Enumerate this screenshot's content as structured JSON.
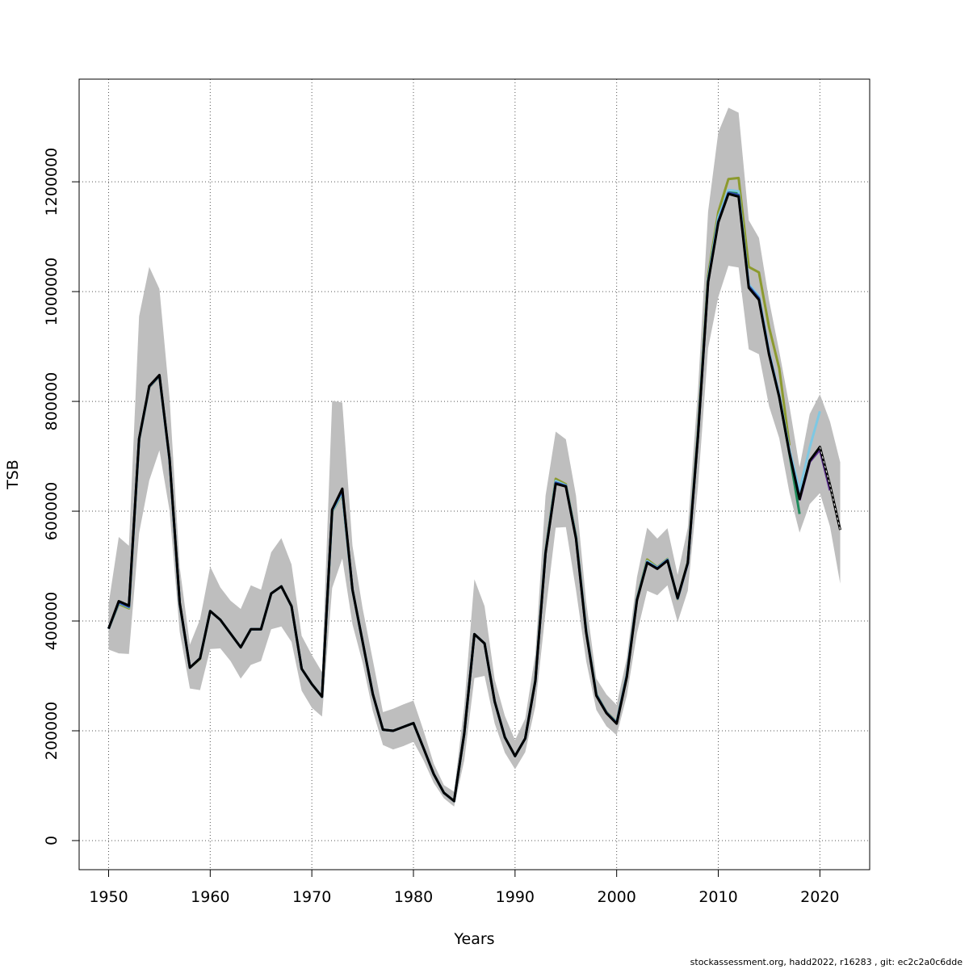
{
  "chart_data": {
    "type": "line",
    "title": "",
    "xlabel": "Years",
    "ylabel": "TSB",
    "xlim": [
      1947.1,
      2024.9
    ],
    "ylim": [
      -53000,
      1387000
    ],
    "xticks": [
      1950,
      1960,
      1970,
      1980,
      1990,
      2000,
      2010,
      2020
    ],
    "xtick_labels": [
      "1950",
      "1960",
      "1970",
      "1980",
      "1990",
      "2000",
      "2010",
      "2020"
    ],
    "yticks": [
      0,
      200000,
      400000,
      600000,
      800000,
      1000000,
      1200000
    ],
    "ytick_labels": [
      "0",
      "200000",
      "400000",
      "600000",
      "800000",
      "1000000",
      "1200000"
    ],
    "grid": true,
    "band_color": "#bebebe",
    "confidence_band": {
      "x": [
        1950,
        1951,
        1952,
        1953,
        1954,
        1955,
        1956,
        1957,
        1958,
        1959,
        1960,
        1961,
        1962,
        1963,
        1964,
        1965,
        1966,
        1967,
        1968,
        1969,
        1970,
        1971,
        1972,
        1973,
        1974,
        1975,
        1976,
        1977,
        1978,
        1979,
        1980,
        1981,
        1982,
        1983,
        1984,
        1985,
        1986,
        1987,
        1988,
        1989,
        1990,
        1991,
        1992,
        1993,
        1994,
        1995,
        1996,
        1997,
        1998,
        1999,
        2000,
        2001,
        2002,
        2003,
        2004,
        2005,
        2006,
        2007,
        2008,
        2009,
        2010,
        2011,
        2012,
        2013,
        2014,
        2015,
        2016,
        2017,
        2018,
        2019,
        2020,
        2021,
        2022
      ],
      "upper": [
        431000,
        553000,
        537000,
        955000,
        1045000,
        1005000,
        806000,
        498000,
        357000,
        403000,
        499000,
        461000,
        437000,
        422000,
        465000,
        457000,
        525000,
        551000,
        503000,
        373000,
        338000,
        307000,
        801000,
        798000,
        537000,
        423000,
        329000,
        234000,
        240000,
        248000,
        255000,
        200000,
        140000,
        101000,
        89000,
        245000,
        476000,
        427000,
        293000,
        227000,
        183000,
        222000,
        340000,
        628000,
        745000,
        731000,
        628000,
        435000,
        295000,
        266000,
        247000,
        333000,
        480000,
        570000,
        550000,
        569000,
        484000,
        570000,
        820000,
        1146000,
        1290000,
        1335000,
        1326000,
        1130000,
        1098000,
        984000,
        891000,
        792000,
        680000,
        777000,
        813000,
        763000,
        689000
      ],
      "lower": [
        348000,
        341000,
        340000,
        560000,
        656000,
        711000,
        601000,
        380000,
        277000,
        274000,
        349000,
        350000,
        327000,
        295000,
        320000,
        327000,
        385000,
        390000,
        362000,
        273000,
        242000,
        226000,
        460000,
        514000,
        394000,
        324000,
        236000,
        174000,
        166000,
        172000,
        180000,
        146000,
        105000,
        77000,
        62000,
        146000,
        296000,
        300000,
        213000,
        160000,
        130000,
        161000,
        245000,
        416000,
        570000,
        571000,
        456000,
        327000,
        238000,
        208000,
        192000,
        264000,
        378000,
        455000,
        447000,
        465000,
        398000,
        455000,
        645000,
        897000,
        990000,
        1047000,
        1044000,
        895000,
        886000,
        791000,
        733000,
        634000,
        561000,
        613000,
        633000,
        572000,
        468000
      ]
    },
    "series": [
      {
        "color": "#000000",
        "x": [
          1950,
          1951,
          1952,
          1953,
          1954,
          1955,
          1956,
          1957,
          1958,
          1959,
          1960,
          1961,
          1962,
          1963,
          1964,
          1965,
          1966,
          1967,
          1968,
          1969,
          1970,
          1971,
          1972,
          1973,
          1974,
          1975,
          1976,
          1977,
          1978,
          1979,
          1980,
          1981,
          1982,
          1983,
          1984,
          1985,
          1986,
          1987,
          1988,
          1989,
          1990,
          1991,
          1992,
          1993,
          1994,
          1995,
          1996,
          1997,
          1998,
          1999,
          2000,
          2001,
          2002,
          2003,
          2004,
          2005,
          2006,
          2007,
          2008,
          2009,
          2010,
          2011,
          2012,
          2013,
          2014,
          2015,
          2016,
          2017,
          2018,
          2019,
          2020,
          2021,
          2022
        ],
        "values": [
          386000,
          436000,
          428000,
          732000,
          828000,
          848000,
          695000,
          433000,
          315000,
          332000,
          418000,
          402000,
          377000,
          352000,
          385000,
          385000,
          450000,
          463000,
          427000,
          313000,
          285000,
          262000,
          603000,
          641000,
          457000,
          362000,
          267000,
          202000,
          200000,
          207000,
          214000,
          168000,
          121000,
          87000,
          72000,
          195000,
          376000,
          359000,
          253000,
          188000,
          154000,
          186000,
          291000,
          523000,
          650000,
          645000,
          550000,
          379000,
          264000,
          232000,
          213000,
          298000,
          438000,
          506000,
          495000,
          510000,
          442000,
          506000,
          736000,
          1017000,
          1126000,
          1178000,
          1173000,
          1007000,
          985000,
          885000,
          808000,
          706000,
          622000,
          692000,
          717000,
          647000,
          566000
        ]
      },
      {
        "color": "#5b2c8f",
        "x": [
          2018,
          2019,
          2020,
          2021
        ],
        "values": [
          620000,
          690000,
          712000,
          638000
        ]
      },
      {
        "color": "#2b4aa8",
        "x": [
          1950,
          1951,
          1952,
          1953,
          1954,
          1955,
          1956,
          1957,
          1958,
          1959,
          1960,
          1961,
          1962,
          1963,
          1964,
          1965,
          1966,
          1967,
          1968,
          1969,
          1970,
          1971,
          1972,
          1973,
          1974,
          1975,
          1976,
          1977,
          1978,
          1979,
          1980,
          1981,
          1982,
          1983,
          1984,
          1985,
          1986,
          1987,
          1988,
          1989,
          1990,
          1991,
          1992,
          1993,
          1994,
          1995,
          1996,
          1997,
          1998,
          1999,
          2000,
          2001,
          2002,
          2003,
          2004,
          2005,
          2006,
          2007,
          2008,
          2009,
          2010,
          2011,
          2012,
          2013,
          2014,
          2015,
          2016,
          2017,
          2018,
          2019
        ],
        "values": [
          386000,
          434000,
          426000,
          731000,
          827000,
          847000,
          694000,
          432000,
          315000,
          332000,
          418000,
          402000,
          377000,
          352000,
          385000,
          385000,
          450000,
          463000,
          427000,
          313000,
          285000,
          262000,
          602000,
          638000,
          457000,
          362000,
          267000,
          202000,
          200000,
          207000,
          214000,
          168000,
          121000,
          87000,
          72000,
          195000,
          376000,
          359000,
          253000,
          188000,
          154000,
          186000,
          291000,
          524000,
          652000,
          646000,
          551000,
          380000,
          265000,
          233000,
          214000,
          300000,
          439000,
          507000,
          496000,
          511000,
          441000,
          505000,
          737000,
          1018000,
          1128000,
          1180000,
          1176000,
          1010000,
          988000,
          887000,
          809000,
          707000,
          624000,
          690000
        ]
      },
      {
        "color": "#7ec8e3",
        "x": [
          1950,
          1951,
          1952,
          1953,
          1954,
          1955,
          1956,
          1957,
          1958,
          1959,
          1960,
          1961,
          1962,
          1963,
          1964,
          1965,
          1966,
          1967,
          1968,
          1969,
          1970,
          1971,
          1972,
          1973,
          1974,
          1975,
          1976,
          1977,
          1978,
          1979,
          1980,
          1981,
          1982,
          1983,
          1984,
          1985,
          1986,
          1987,
          1988,
          1989,
          1990,
          1991,
          1992,
          1993,
          1994,
          1995,
          1996,
          1997,
          1998,
          1999,
          2000,
          2001,
          2002,
          2003,
          2004,
          2005,
          2006,
          2007,
          2008,
          2009,
          2010,
          2011,
          2012,
          2013,
          2014,
          2015,
          2016,
          2017,
          2018,
          2019,
          2020
        ],
        "values": [
          386000,
          433000,
          425000,
          731000,
          827000,
          847000,
          694000,
          432000,
          315000,
          332000,
          418000,
          402000,
          377000,
          352000,
          385000,
          385000,
          450000,
          463000,
          427000,
          313000,
          285000,
          262000,
          600000,
          634000,
          457000,
          362000,
          267000,
          202000,
          200000,
          207000,
          214000,
          168000,
          121000,
          87000,
          72000,
          195000,
          376000,
          359000,
          253000,
          188000,
          154000,
          186000,
          292000,
          525000,
          655000,
          647000,
          553000,
          381000,
          266000,
          233000,
          215000,
          301000,
          440000,
          509000,
          497000,
          512000,
          441000,
          506000,
          740000,
          1022000,
          1135000,
          1185000,
          1183000,
          1013000,
          992000,
          890000,
          812000,
          712000,
          638000,
          716000,
          782000
        ]
      },
      {
        "color": "#1f8a5b",
        "x": [
          1950,
          1951,
          1952,
          1953,
          1954,
          1955,
          1956,
          1957,
          1958,
          1959,
          1960,
          1961,
          1962,
          1963,
          1964,
          1965,
          1966,
          1967,
          1968,
          1969,
          1970,
          1971,
          1972,
          1973,
          1974,
          1975,
          1976,
          1977,
          1978,
          1979,
          1980,
          1981,
          1982,
          1983,
          1984,
          1985,
          1986,
          1987,
          1988,
          1989,
          1990,
          1991,
          1992,
          1993,
          1994,
          1995,
          1996,
          1997,
          1998,
          1999,
          2000,
          2001,
          2002,
          2003,
          2004,
          2005,
          2006,
          2007,
          2008,
          2009,
          2010,
          2011,
          2012,
          2013,
          2014,
          2015,
          2016,
          2017,
          2018
        ],
        "values": [
          386000,
          433000,
          425000,
          731000,
          827000,
          847000,
          694000,
          432000,
          315000,
          332000,
          418000,
          402000,
          377000,
          352000,
          385000,
          385000,
          450000,
          463000,
          427000,
          313000,
          285000,
          262000,
          600000,
          634000,
          457000,
          362000,
          267000,
          202000,
          200000,
          207000,
          214000,
          168000,
          121000,
          87000,
          72000,
          195000,
          376000,
          359000,
          253000,
          188000,
          154000,
          186000,
          292000,
          525000,
          655000,
          647000,
          553000,
          381000,
          266000,
          233000,
          215000,
          301000,
          440000,
          509000,
          497000,
          512000,
          441000,
          506000,
          740000,
          1022000,
          1133000,
          1182000,
          1180000,
          1012000,
          990000,
          887000,
          808000,
          705000,
          595000
        ]
      },
      {
        "color": "#8c9a2e",
        "x": [
          1950,
          1951,
          1952,
          1953,
          1954,
          1955,
          1956,
          1957,
          1958,
          1959,
          1960,
          1961,
          1962,
          1963,
          1964,
          1965,
          1966,
          1967,
          1968,
          1969,
          1970,
          1971,
          1972,
          1973,
          1974,
          1975,
          1976,
          1977,
          1978,
          1979,
          1980,
          1981,
          1982,
          1983,
          1984,
          1985,
          1986,
          1987,
          1988,
          1989,
          1990,
          1991,
          1992,
          1993,
          1994,
          1995,
          1996,
          1997,
          1998,
          1999,
          2000,
          2001,
          2002,
          2003,
          2004,
          2005,
          2006,
          2007,
          2008,
          2009,
          2010,
          2011,
          2012,
          2013,
          2014,
          2015,
          2016,
          2017
        ],
        "values": [
          386000,
          431000,
          423000,
          730000,
          826000,
          846000,
          693000,
          431000,
          315000,
          331000,
          418000,
          402000,
          377000,
          352000,
          385000,
          385000,
          450000,
          463000,
          427000,
          313000,
          285000,
          262000,
          599000,
          632000,
          457000,
          362000,
          267000,
          202000,
          200000,
          207000,
          214000,
          168000,
          121000,
          87000,
          72000,
          195000,
          376000,
          359000,
          253000,
          188000,
          154000,
          186000,
          293000,
          527000,
          659000,
          649000,
          555000,
          382000,
          267000,
          234000,
          216000,
          302000,
          441000,
          512000,
          498000,
          513000,
          440000,
          507000,
          745000,
          1030000,
          1145000,
          1205000,
          1207000,
          1045000,
          1035000,
          935000,
          860000,
          720000
        ]
      }
    ]
  },
  "footer": {
    "credit": "stockassessment.org, hadd2022, r16283 , git: ec2c2a0c6dde"
  }
}
